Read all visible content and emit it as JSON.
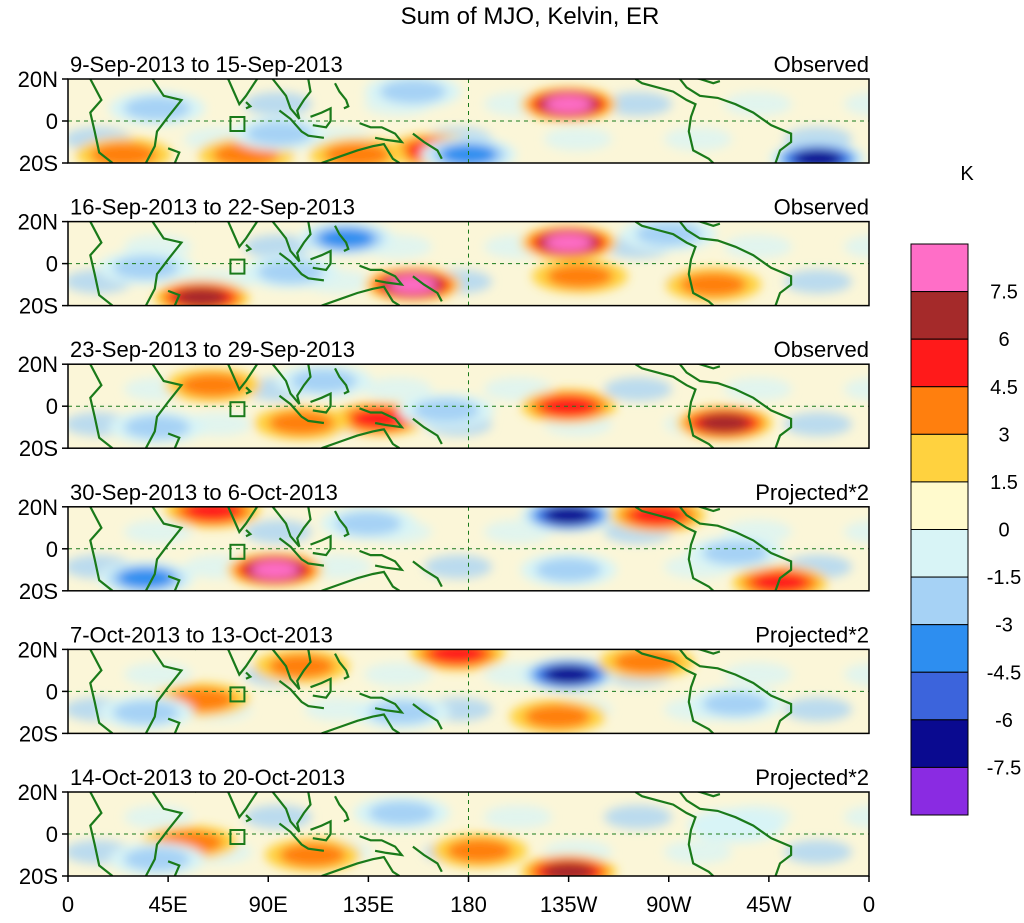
{
  "chart_data": {
    "type": "heatmap",
    "title": "Sum of MJO, Kelvin, ER",
    "units": "K",
    "latitude_tick_labels": [
      "20N",
      "0",
      "20S"
    ],
    "longitude_tick_labels": [
      "0",
      "45E",
      "90E",
      "135E",
      "180",
      "135W",
      "90W",
      "45W",
      "0"
    ],
    "longitude_range": [
      0,
      360
    ],
    "latitude_range": [
      -20,
      20
    ],
    "colorbar": {
      "levels": [
        "7.5",
        "6",
        "4.5",
        "3",
        "1.5",
        "0",
        "-1.5",
        "-3",
        "-4.5",
        "-6",
        "-7.5"
      ],
      "colors": [
        "#ff6ec7",
        "#a52a2a",
        "#ff1a1a",
        "#ff7f0e",
        "#ffd23f",
        "#fffacd",
        "#d8f4f6",
        "#a6d2f5",
        "#2d8ef0",
        "#3c64dc",
        "#0a0a90",
        "#8a2be2"
      ]
    },
    "panels": [
      {
        "date_range": "9-Sep-2013 to 15-Sep-2013",
        "label": "Observed",
        "anomalies": [
          {
            "lon": 225,
            "lat": 8,
            "value": 7.5
          },
          {
            "lon": 165,
            "lat": -14,
            "value": 4.5
          },
          {
            "lon": 80,
            "lat": -16,
            "value": 3
          },
          {
            "lon": 25,
            "lat": -16,
            "value": 3
          },
          {
            "lon": 130,
            "lat": -16,
            "value": 3
          },
          {
            "lon": 337,
            "lat": -18,
            "value": -7.5
          },
          {
            "lon": 180,
            "lat": -16,
            "value": -4.5
          },
          {
            "lon": 155,
            "lat": 14,
            "value": -3
          },
          {
            "lon": 95,
            "lat": -6,
            "value": -3
          },
          {
            "lon": 40,
            "lat": 6,
            "value": -3
          }
        ]
      },
      {
        "date_range": "16-Sep-2013 to 22-Sep-2013",
        "label": "Observed",
        "anomalies": [
          {
            "lon": 225,
            "lat": 10,
            "value": 7.5
          },
          {
            "lon": 155,
            "lat": -10,
            "value": 7.5
          },
          {
            "lon": 60,
            "lat": -16,
            "value": 6
          },
          {
            "lon": 290,
            "lat": -10,
            "value": 3
          },
          {
            "lon": 230,
            "lat": -6,
            "value": 3
          },
          {
            "lon": 125,
            "lat": 12,
            "value": -4.5
          },
          {
            "lon": 270,
            "lat": 14,
            "value": -3
          },
          {
            "lon": 35,
            "lat": -2,
            "value": -3
          },
          {
            "lon": 100,
            "lat": -4,
            "value": -3
          }
        ]
      },
      {
        "date_range": "23-Sep-2013 to 29-Sep-2013",
        "label": "Observed",
        "anomalies": [
          {
            "lon": 295,
            "lat": -8,
            "value": 6
          },
          {
            "lon": 140,
            "lat": -6,
            "value": 4.5
          },
          {
            "lon": 225,
            "lat": 0,
            "value": 4.5
          },
          {
            "lon": 65,
            "lat": 10,
            "value": 3
          },
          {
            "lon": 105,
            "lat": -8,
            "value": 3
          },
          {
            "lon": 170,
            "lat": -2,
            "value": -3
          },
          {
            "lon": 40,
            "lat": -10,
            "value": -3
          },
          {
            "lon": 115,
            "lat": 12,
            "value": -3
          }
        ]
      },
      {
        "date_range": "30-Sep-2013 to 6-Oct-2013",
        "label": "Projected*2",
        "anomalies": [
          {
            "lon": 93,
            "lat": -10,
            "value": 7.5
          },
          {
            "lon": 225,
            "lat": 16,
            "value": -7.5
          },
          {
            "lon": 265,
            "lat": 16,
            "value": 4.5
          },
          {
            "lon": 320,
            "lat": -16,
            "value": 4.5
          },
          {
            "lon": 65,
            "lat": 18,
            "value": 4.5
          },
          {
            "lon": 35,
            "lat": -14,
            "value": -4.5
          },
          {
            "lon": 300,
            "lat": -2,
            "value": -3
          },
          {
            "lon": 225,
            "lat": -10,
            "value": -3
          },
          {
            "lon": 135,
            "lat": 12,
            "value": -3
          }
        ]
      },
      {
        "date_range": "7-Oct-2013 to 13-Oct-2013",
        "label": "Projected*2",
        "anomalies": [
          {
            "lon": 225,
            "lat": 8,
            "value": -7.5
          },
          {
            "lon": 220,
            "lat": -12,
            "value": 3
          },
          {
            "lon": 60,
            "lat": -4,
            "value": 3
          },
          {
            "lon": 175,
            "lat": 18,
            "value": 4.5
          },
          {
            "lon": 105,
            "lat": 12,
            "value": 3
          },
          {
            "lon": 260,
            "lat": 14,
            "value": 3
          },
          {
            "lon": 150,
            "lat": -10,
            "value": -3
          },
          {
            "lon": 35,
            "lat": -10,
            "value": -3
          },
          {
            "lon": 300,
            "lat": -6,
            "value": -3
          }
        ]
      },
      {
        "date_range": "14-Oct-2013 to 20-Oct-2013",
        "label": "Projected*2",
        "anomalies": [
          {
            "lon": 225,
            "lat": -18,
            "value": 6
          },
          {
            "lon": 55,
            "lat": -4,
            "value": 3
          },
          {
            "lon": 110,
            "lat": -10,
            "value": 3
          },
          {
            "lon": 185,
            "lat": -8,
            "value": 3
          },
          {
            "lon": 150,
            "lat": 10,
            "value": -3
          },
          {
            "lon": 40,
            "lat": -12,
            "value": -3
          },
          {
            "lon": 300,
            "lat": 4,
            "value": -1.5
          }
        ]
      }
    ]
  }
}
